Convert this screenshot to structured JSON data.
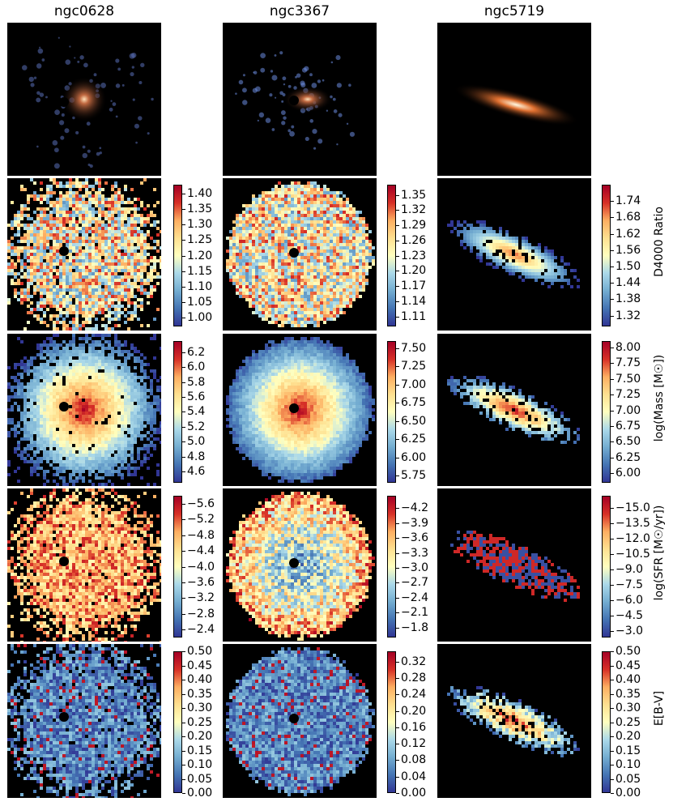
{
  "columns": [
    {
      "title": "ngc0628"
    },
    {
      "title": "ngc3367"
    },
    {
      "title": "ngc5719"
    }
  ],
  "colors": {
    "colormap_low": "#3b4ba0",
    "colormap_mid": "#fdfdbf",
    "colormap_high": "#a50026",
    "panel_background": "#000000"
  },
  "chart_data": [
    {
      "type": "heatmap",
      "title": "ngc0628",
      "rows": [
        {
          "quantity": "composite image",
          "colorbar": null
        },
        {
          "quantity": "D4000 Ratio",
          "ticks": [
            "1.40",
            "1.35",
            "1.30",
            "1.25",
            "1.20",
            "1.15",
            "1.10",
            "1.05",
            "1.00"
          ],
          "range": [
            0.97,
            1.43
          ],
          "reversed": false
        },
        {
          "quantity": "log(Mass)",
          "ticks": [
            "6.2",
            "6.0",
            "5.8",
            "5.6",
            "5.4",
            "5.2",
            "5.0",
            "4.8",
            "4.6"
          ],
          "range": [
            4.45,
            6.35
          ],
          "reversed": false
        },
        {
          "quantity": "log(SFR)",
          "ticks": [
            "−2.4",
            "−2.8",
            "−3.2",
            "−3.6",
            "−4.0",
            "−4.4",
            "−4.8",
            "−5.2",
            "−5.6"
          ],
          "range": [
            -5.8,
            -2.2
          ],
          "reversed": true
        },
        {
          "quantity": "E[B-V]",
          "ticks": [
            "0.50",
            "0.45",
            "0.40",
            "0.35",
            "0.30",
            "0.25",
            "0.20",
            "0.15",
            "0.10",
            "0.05",
            "0.00"
          ],
          "range": [
            0.0,
            0.5
          ],
          "reversed": false
        }
      ]
    },
    {
      "type": "heatmap",
      "title": "ngc3367",
      "rows": [
        {
          "quantity": "composite image",
          "colorbar": null
        },
        {
          "quantity": "D4000 Ratio",
          "ticks": [
            "1.35",
            "1.32",
            "1.29",
            "1.26",
            "1.23",
            "1.20",
            "1.17",
            "1.14",
            "1.11"
          ],
          "range": [
            1.09,
            1.37
          ],
          "reversed": false
        },
        {
          "quantity": "log(Mass)",
          "ticks": [
            "7.50",
            "7.25",
            "7.00",
            "6.75",
            "6.50",
            "6.25",
            "6.00",
            "5.75"
          ],
          "range": [
            5.65,
            7.6
          ],
          "reversed": false
        },
        {
          "quantity": "log(SFR)",
          "ticks": [
            "−1.8",
            "−2.1",
            "−2.4",
            "−2.7",
            "−3.0",
            "−3.3",
            "−3.6",
            "−3.9",
            "−4.2"
          ],
          "range": [
            -4.45,
            -1.6
          ],
          "reversed": true
        },
        {
          "quantity": "E[B-V]",
          "ticks": [
            "0.32",
            "0.28",
            "0.24",
            "0.20",
            "0.16",
            "0.12",
            "0.08",
            "0.04",
            "0.00"
          ],
          "range": [
            0.0,
            0.345
          ],
          "reversed": false
        }
      ]
    },
    {
      "type": "heatmap",
      "title": "ngc5719",
      "rows": [
        {
          "quantity": "composite image",
          "colorbar": null
        },
        {
          "quantity": "D4000 Ratio",
          "label": "D4000 Ratio",
          "ticks": [
            "1.74",
            "1.68",
            "1.62",
            "1.56",
            "1.50",
            "1.44",
            "1.38",
            "1.32"
          ],
          "range": [
            1.28,
            1.8
          ],
          "reversed": false
        },
        {
          "quantity": "log(Mass)",
          "label": "log(Mass [M☉])",
          "ticks": [
            "8.00",
            "7.75",
            "7.50",
            "7.25",
            "7.00",
            "6.75",
            "6.50",
            "6.25",
            "6.00"
          ],
          "range": [
            5.85,
            8.1
          ],
          "reversed": false
        },
        {
          "quantity": "log(SFR)",
          "label": "log(SFR [M☉/yr])",
          "ticks": [
            "−3.0",
            "−4.5",
            "−6.0",
            "−7.5",
            "−9.0",
            "−10.5",
            "−12.0",
            "−13.5",
            "−15.0"
          ],
          "range": [
            -16.2,
            -2.4
          ],
          "reversed": true
        },
        {
          "quantity": "E[B-V]",
          "label": "E[B-V]",
          "ticks": [
            "0.50",
            "0.45",
            "0.40",
            "0.35",
            "0.30",
            "0.25",
            "0.20",
            "0.15",
            "0.10",
            "0.05",
            "0.00"
          ],
          "range": [
            0.0,
            0.5
          ],
          "reversed": false
        }
      ]
    }
  ],
  "colorbar_labels": {
    "d4000": "D4000 Ratio",
    "mass": "log(Mass [M☉])",
    "sfr": "log(SFR [M☉/yr])",
    "ebv": "E[B-V]"
  }
}
